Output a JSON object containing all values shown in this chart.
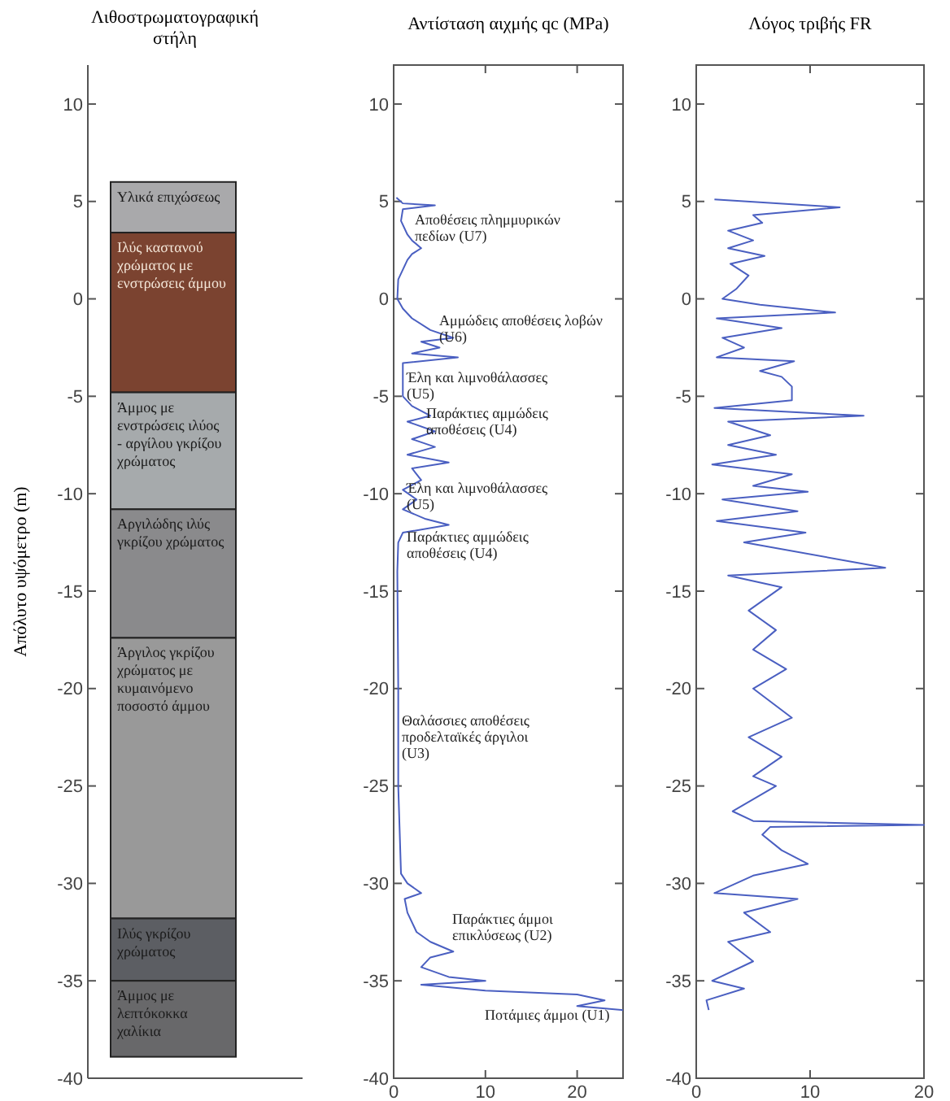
{
  "chart_data": [
    {
      "type": "bar",
      "title": "Λιθοστρωματογραφική στήλη",
      "ylabel": "Απόλυτο υψόμετρο (m)",
      "categories": [
        null
      ],
      "ylim": [
        -40,
        12
      ],
      "yticks": [
        -40,
        -35,
        -30,
        -25,
        -20,
        -15,
        -10,
        -5,
        0,
        5,
        10
      ],
      "tick_labels": "y",
      "series": [
        {
          "name": "Υλικά επιχώσεως",
          "color": "#a9a9ab",
          "base": [
            3.4
          ],
          "values": [
            2.6
          ]
        },
        {
          "name": "Ιλύς καστανού χρώματος με ενστρώσεις άμμου",
          "color": "#7b4330",
          "base": [
            -4.8
          ],
          "values": [
            8.2
          ]
        },
        {
          "name": "Άμμος με ενστρώσεις ιλύος - αργίλου γκρίζου χρώματος",
          "color": "#a6aaac",
          "base": [
            -10.8
          ],
          "values": [
            6
          ]
        },
        {
          "name": "Αργιλώδης ιλύς γκρίζου χρώματος",
          "color": "#8a8a8c",
          "base": [
            -17.4
          ],
          "values": [
            6.6
          ]
        },
        {
          "name": "Άργιλος γκρίζου χρώματος με κυμαινόμενο ποσοστό άμμου",
          "color": "#999999",
          "base": [
            -31.8
          ],
          "values": [
            14.4
          ]
        },
        {
          "name": "Ιλύς γκρίζου χρώματος",
          "color": "#5c5e63",
          "base": [
            -35
          ],
          "values": [
            3.2
          ]
        },
        {
          "name": "Άμμος με λεπτόκοκκα χαλίκια",
          "color": "#68686a",
          "base": [
            -38.9
          ],
          "values": [
            3.9
          ]
        }
      ]
    },
    {
      "type": "line",
      "title": "Αντίσταση αιχμής qc (MPa)",
      "xlim": [
        0,
        25
      ],
      "xticks": [
        0,
        10,
        20
      ],
      "ylim": [
        -40,
        12
      ],
      "yticks": [
        -40,
        -35,
        -30,
        -25,
        -20,
        -15,
        -10,
        -5,
        0,
        5,
        10
      ],
      "series": [
        {
          "color": "#4a5fc1",
          "x": [
            0.3,
            1,
            4.5,
            1,
            0.8,
            1.5,
            2,
            3,
            2,
            1.5,
            0.5,
            0.4,
            1,
            2,
            4,
            6.5,
            3,
            5,
            2,
            7,
            1,
            1,
            1,
            2,
            4,
            1.5,
            4.5,
            2,
            4.5,
            1.5,
            6,
            2,
            3,
            1,
            2.5,
            1,
            3.5,
            6,
            1,
            0.5,
            0.4,
            0.5,
            0.5,
            0.8,
            1.5,
            3,
            1.2,
            1.5,
            2.5,
            4,
            6.5,
            4,
            3,
            6,
            10,
            3,
            10,
            20,
            23,
            20,
            25
          ],
          "values": [
            5.2,
            4.9,
            4.8,
            4.6,
            4,
            3.3,
            3,
            2.6,
            2.3,
            2,
            1,
            0,
            -0.5,
            -1,
            -1.6,
            -2,
            -2.2,
            -2.5,
            -2.8,
            -3,
            -3.3,
            -4,
            -5,
            -5.5,
            -6,
            -6.3,
            -6.8,
            -7.2,
            -7.6,
            -8,
            -8.4,
            -8.7,
            -9.3,
            -9.8,
            -10.3,
            -10.8,
            -11.3,
            -11.6,
            -12,
            -12.5,
            -14,
            -20,
            -25,
            -29.5,
            -30,
            -30.5,
            -30.8,
            -31.5,
            -32.5,
            -33,
            -33.5,
            -33.8,
            -34.3,
            -34.8,
            -35,
            -35.2,
            -35.5,
            -35.7,
            -36,
            -36.3,
            -36.5
          ]
        }
      ],
      "annotations": [
        "Αποθέσεις πλημμυρικών πεδίων (U7)",
        "Αμμώδεις αποθέσεις λοβών (U6)",
        "Έλη και λιμνοθάλασσες (U5)",
        "Παράκτιες αμμώδεις αποθέσεις (U4)",
        "Έλη και λιμνοθάλασσες (U5)",
        "Παράκτιες αμμώδεις αποθέσεις (U4)",
        "Θαλάσσιες αποθέσεις προδελταϊκές άργιλοι (U3)",
        "Παράκτιες άμμοι επικλύσεως (U2)",
        "Ποτάμιες άμμοι (U1)"
      ]
    },
    {
      "type": "line",
      "title": "Λόγος τριβής FR",
      "xlim": [
        0,
        20
      ],
      "xticks": [
        0,
        10,
        20
      ],
      "ylim": [
        -40,
        12
      ],
      "yticks": [
        -40,
        -35,
        -30,
        -25,
        -20,
        -15,
        -10,
        -5,
        0,
        5,
        10
      ],
      "series": [
        {
          "color": "#4a5fc1",
          "x": [
            1.6,
            12.6,
            5,
            5.8,
            2.8,
            5,
            2.8,
            6,
            3,
            4.6,
            3.5,
            2.3,
            5.6,
            12.2,
            1.8,
            7.5,
            2.3,
            4.2,
            1.8,
            8.6,
            5.6,
            7.5,
            8.4,
            8.4,
            1.6,
            14.7,
            2.8,
            6.5,
            2.8,
            7,
            1.4,
            8.4,
            5,
            9.8,
            2.3,
            8.9,
            1.8,
            9.6,
            4.2,
            16.6,
            2.8,
            7.5,
            4.6,
            7,
            5,
            7.9,
            5,
            8.4,
            4.6,
            7.5,
            5,
            7,
            3.2,
            5,
            20,
            6.5,
            5.8,
            7.5,
            9.8,
            5,
            1.6,
            8.9,
            4.2,
            6.5,
            2.8,
            5,
            1.4,
            4.2,
            0.9,
            1.1
          ],
          "values": [
            5.1,
            4.7,
            4.3,
            3.9,
            3.5,
            3,
            2.6,
            2.2,
            1.8,
            1.2,
            0.5,
            0,
            -0.3,
            -0.7,
            -1,
            -1.5,
            -2,
            -2.5,
            -3,
            -3.2,
            -3.7,
            -4,
            -4.5,
            -5.2,
            -5.6,
            -6,
            -6.3,
            -7,
            -7.5,
            -8,
            -8.5,
            -9,
            -9.6,
            -9.9,
            -10.3,
            -10.9,
            -11.4,
            -12,
            -12.5,
            -13.8,
            -14.2,
            -14.8,
            -16,
            -17,
            -18,
            -19,
            -20,
            -21.5,
            -22.5,
            -23.5,
            -24.5,
            -25,
            -26.3,
            -26.8,
            -27,
            -27.1,
            -27.5,
            -28.3,
            -29,
            -29.6,
            -30.5,
            -30.8,
            -31.5,
            -32.5,
            -33,
            -34,
            -35,
            -35.4,
            -36,
            -36.5
          ]
        }
      ]
    }
  ]
}
